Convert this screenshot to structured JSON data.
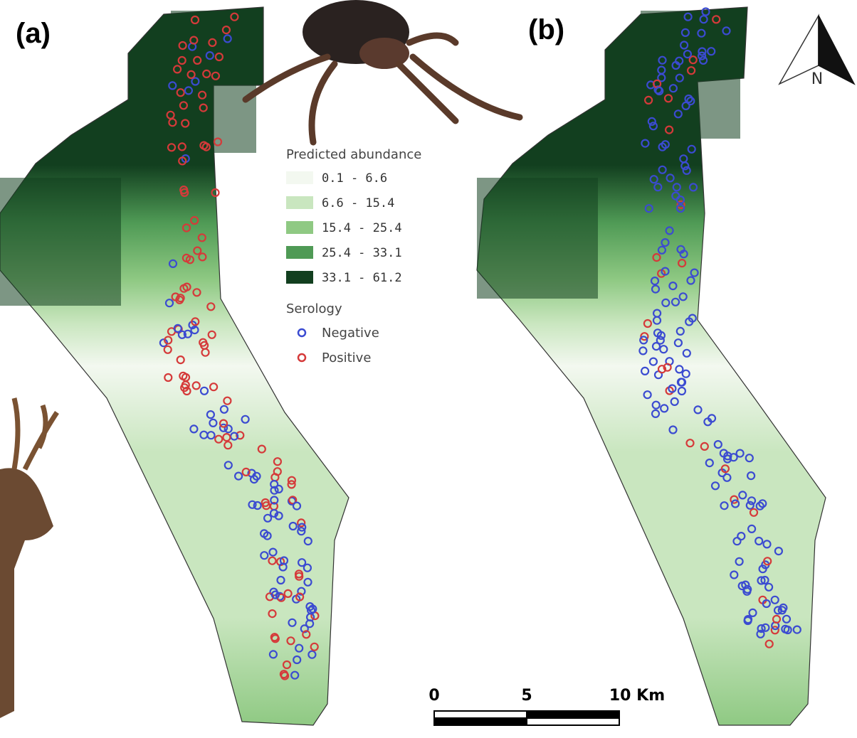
{
  "panels": [
    "(a)",
    "(b)"
  ],
  "legend": {
    "title": "Predicted abundance",
    "classes": [
      {
        "label": "0.1 - 6.6",
        "color": "#f3f8f0"
      },
      {
        "label": "6.6 - 15.4",
        "color": "#c9e6bf"
      },
      {
        "label": "15.4 - 25.4",
        "color": "#8fc983"
      },
      {
        "label": "25.4 - 33.1",
        "color": "#4f9a55"
      },
      {
        "label": "33.1 - 61.2",
        "color": "#123f1f"
      }
    ],
    "serology_title": "Serology",
    "serology": [
      {
        "label": "Negative",
        "color": "#3b4bd1"
      },
      {
        "label": "Positive",
        "color": "#d53a3a"
      }
    ]
  },
  "scale_bar": [
    "0",
    "5",
    "10 Km"
  ],
  "north": "N"
}
